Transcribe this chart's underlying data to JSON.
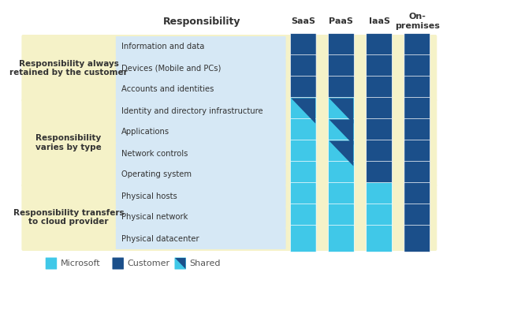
{
  "title": "Responsibility",
  "columns": [
    "SaaS",
    "PaaS",
    "IaaS",
    "On-\npremises"
  ],
  "rows": [
    "Information and data",
    "Devices (Mobile and PCs)",
    "Accounts and identities",
    "Identity and directory infrastructure",
    "Applications",
    "Network controls",
    "Operating system",
    "Physical hosts",
    "Physical network",
    "Physical datacenter"
  ],
  "groups": [
    {
      "label": "Responsibility always\nretained by the customer",
      "rows": [
        0,
        1,
        2
      ]
    },
    {
      "label": "Responsibility\nvaries by type",
      "rows": [
        3,
        4,
        5,
        6
      ]
    },
    {
      "label": "Responsibility transfers\nto cloud provider",
      "rows": [
        7,
        8,
        9
      ]
    }
  ],
  "cell_types": [
    [
      "customer",
      "customer",
      "customer",
      "customer"
    ],
    [
      "customer",
      "customer",
      "customer",
      "customer"
    ],
    [
      "customer",
      "customer",
      "customer",
      "customer"
    ],
    [
      "shared",
      "shared",
      "customer",
      "customer"
    ],
    [
      "microsoft",
      "shared",
      "customer",
      "customer"
    ],
    [
      "microsoft",
      "shared",
      "customer",
      "customer"
    ],
    [
      "microsoft",
      "microsoft",
      "customer",
      "customer"
    ],
    [
      "microsoft",
      "microsoft",
      "microsoft",
      "customer"
    ],
    [
      "microsoft",
      "microsoft",
      "microsoft",
      "customer"
    ],
    [
      "microsoft",
      "microsoft",
      "microsoft",
      "customer"
    ]
  ],
  "colors": {
    "microsoft": "#00B4D8",
    "customer": "#1a5276",
    "shared_ms": "#00B4D8",
    "shared_cust": "#1a5276",
    "row_bg_light": "#ddeeff",
    "group_bg": "#f5f0c0",
    "group_label_color": "#333333",
    "header_color": "#333333",
    "row_label_bg": "#dce8f5",
    "background": "#ffffff"
  },
  "legend": [
    {
      "label": "Microsoft",
      "type": "microsoft"
    },
    {
      "label": "Customer",
      "type": "customer"
    },
    {
      "label": "Shared",
      "type": "shared"
    }
  ]
}
